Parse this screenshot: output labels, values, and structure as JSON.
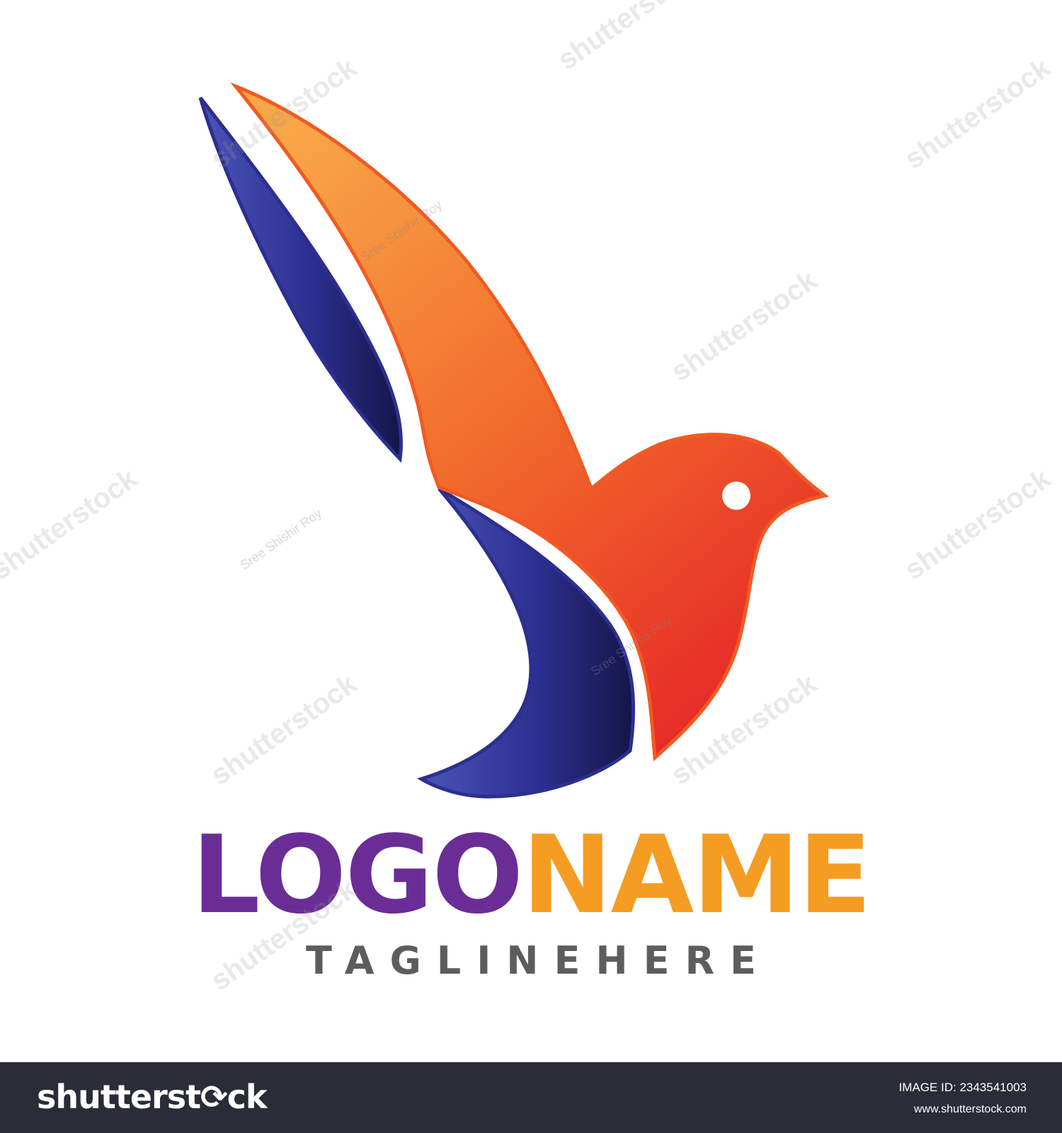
{
  "logo": {
    "wordmark_part1": "LOGO",
    "wordmark_part2": "NAME",
    "tagline": "TAGLINEHERE",
    "colors": {
      "purple": "#6a2d96",
      "orange": "#f59c22",
      "tagline_gray": "#5d5d5d",
      "wing_blue": "#2e3192",
      "bird_orange": "#f57a2c",
      "bird_red": "#e52a24"
    }
  },
  "watermark": {
    "brand_text": "shutterstock",
    "author_text": "Sree Shishir Roy"
  },
  "footer": {
    "brand": "shutterst⟳ck",
    "image_id": "IMAGE ID: 2343541003",
    "url": "www.shutterstock.com",
    "background": "#2a2c37"
  }
}
